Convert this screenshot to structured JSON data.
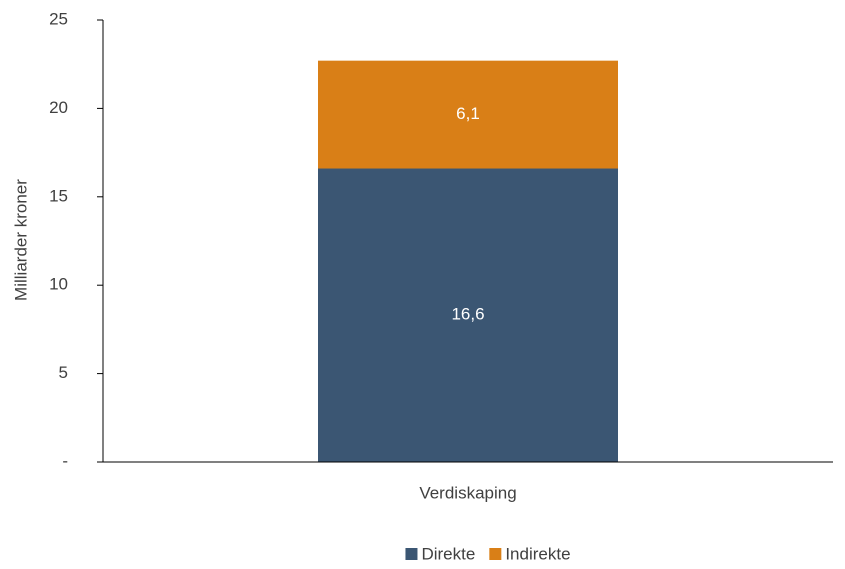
{
  "chart_data": {
    "type": "bar",
    "stacked": true,
    "y_label": "Milliarder kroner",
    "categories": [
      "Verdiskaping"
    ],
    "series": [
      {
        "name": "Direkte",
        "color": "#3b5673",
        "values": [
          16.6
        ],
        "value_labels": [
          "16,6"
        ]
      },
      {
        "name": "Indirekte",
        "color": "#d97f17",
        "values": [
          6.1
        ],
        "value_labels": [
          "6,1"
        ]
      }
    ],
    "ylim": [
      0,
      25
    ],
    "yticks": [
      {
        "value": 0,
        "label": "-"
      },
      5,
      10,
      15,
      20,
      25
    ],
    "legend": "bottom"
  }
}
